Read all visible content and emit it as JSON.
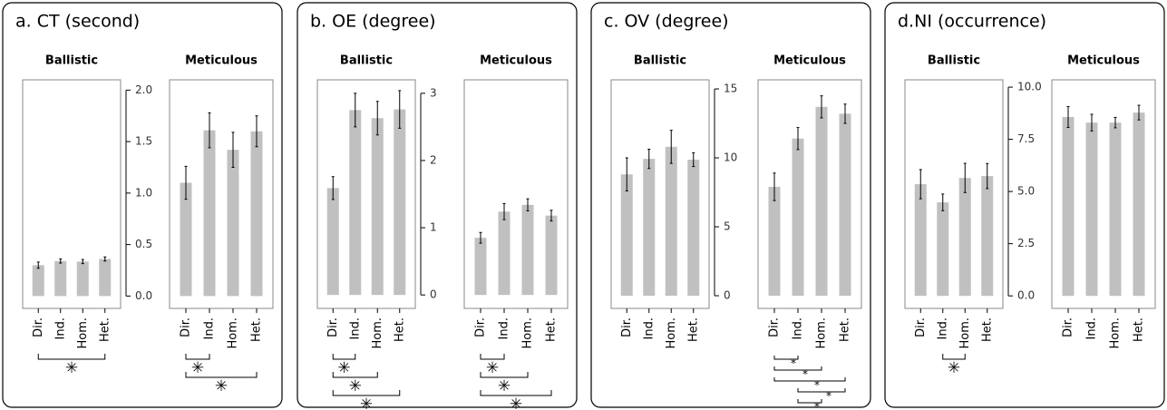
{
  "chart_data": [
    {
      "type": "bar",
      "title": "a. CT (second)",
      "color": "#c0c0c0",
      "ylim": [
        -0.12,
        2.1
      ],
      "yticks": [
        {
          "value": 0,
          "label": "0.0"
        },
        0.5,
        {
          "value": 1,
          "label": "1.0"
        },
        1.5,
        {
          "value": 2,
          "label": "2.0"
        }
      ],
      "subplots": [
        {
          "title": "Ballistic",
          "categories": [
            "Dir.",
            "Ind.",
            "Hom.",
            "Het."
          ],
          "values": [
            0.3,
            0.34,
            0.335,
            0.36
          ],
          "errors": [
            0.03,
            0.02,
            0.02,
            0.02
          ],
          "comparisons": [
            {
              "pair": [
                "Dir.",
                "Het."
              ],
              "label": "✳"
            }
          ]
        },
        {
          "title": "Meticulous",
          "categories": [
            "Dir.",
            "Ind.",
            "Hom.",
            "Het."
          ],
          "values": [
            1.1,
            1.61,
            1.42,
            1.6
          ],
          "errors": [
            0.16,
            0.17,
            0.17,
            0.15
          ],
          "comparisons": [
            {
              "pair": [
                "Dir.",
                "Ind."
              ],
              "label": "✳"
            },
            {
              "pair": [
                "Dir.",
                "Het."
              ],
              "label": "✳"
            }
          ]
        }
      ]
    },
    {
      "type": "bar",
      "title": "b. OE (degree)",
      "color": "#c0c0c0",
      "ylim": [
        -0.2,
        3.2
      ],
      "yticks": [
        0,
        1,
        2,
        3
      ],
      "subplots": [
        {
          "title": "Ballistic",
          "categories": [
            "Dir.",
            "Ind.",
            "Hom.",
            "Het."
          ],
          "values": [
            1.59,
            2.75,
            2.63,
            2.76
          ],
          "errors": [
            0.17,
            0.25,
            0.25,
            0.28
          ],
          "comparisons": [
            {
              "pair": [
                "Dir.",
                "Ind."
              ],
              "label": "✳"
            },
            {
              "pair": [
                "Dir.",
                "Hom."
              ],
              "label": "✳"
            },
            {
              "pair": [
                "Dir.",
                "Het."
              ],
              "label": "✳"
            }
          ]
        },
        {
          "title": "Meticulous",
          "categories": [
            "Dir.",
            "Ind.",
            "Hom.",
            "Het."
          ],
          "values": [
            0.85,
            1.24,
            1.34,
            1.18
          ],
          "errors": [
            0.08,
            0.12,
            0.09,
            0.08
          ],
          "comparisons": [
            {
              "pair": [
                "Dir.",
                "Ind."
              ],
              "label": "✳"
            },
            {
              "pair": [
                "Dir.",
                "Hom."
              ],
              "label": "✳"
            },
            {
              "pair": [
                "Dir.",
                "Het."
              ],
              "label": "✳"
            }
          ]
        }
      ]
    },
    {
      "type": "bar",
      "title": "c. OV (degree)",
      "color": "#c0c0c0",
      "ylim": [
        -0.92,
        15.66
      ],
      "yticks": [
        0,
        5,
        10,
        15
      ],
      "subplots": [
        {
          "title": "Ballistic",
          "categories": [
            "Dir.",
            "Ind.",
            "Hom.",
            "Het."
          ],
          "values": [
            8.8,
            9.93,
            10.8,
            9.87
          ],
          "errors": [
            1.2,
            0.7,
            1.2,
            0.5
          ],
          "comparisons": []
        },
        {
          "title": "Meticulous",
          "categories": [
            "Dir.",
            "Ind.",
            "Hom.",
            "Het."
          ],
          "values": [
            7.9,
            11.4,
            13.7,
            13.2
          ],
          "errors": [
            1.0,
            0.8,
            0.8,
            0.7
          ],
          "comparisons": [
            {
              "pair": [
                "Dir.",
                "Ind."
              ],
              "label": "*"
            },
            {
              "pair": [
                "Dir.",
                "Hom."
              ],
              "label": "*"
            },
            {
              "pair": [
                "Dir.",
                "Het."
              ],
              "label": "*"
            },
            {
              "pair": [
                "Ind.",
                "Het."
              ],
              "label": "*"
            },
            {
              "pair": [
                "Ind.",
                "Hom."
              ],
              "label": "*"
            }
          ]
        }
      ]
    },
    {
      "type": "bar",
      "title": "d.NI (occurrence)",
      "color": "#c0c0c0",
      "ylim": [
        -0.6,
        10.35
      ],
      "yticks": [
        {
          "value": 0,
          "label": "0.0"
        },
        2.5,
        {
          "value": 5,
          "label": "5.0"
        },
        7.5,
        {
          "value": 10,
          "label": "10.0"
        }
      ],
      "subplots": [
        {
          "title": "Ballistic",
          "categories": [
            "Dir.",
            "Ind.",
            "Hom.",
            "Het."
          ],
          "values": [
            5.35,
            4.48,
            5.65,
            5.74
          ],
          "errors": [
            0.7,
            0.4,
            0.7,
            0.6
          ],
          "comparisons": [
            {
              "pair": [
                "Ind.",
                "Hom."
              ],
              "label": "✳"
            }
          ]
        },
        {
          "title": "Meticulous",
          "categories": [
            "Dir.",
            "Ind.",
            "Hom.",
            "Het."
          ],
          "values": [
            8.57,
            8.3,
            8.3,
            8.78
          ],
          "errors": [
            0.5,
            0.4,
            0.25,
            0.35
          ],
          "comparisons": []
        }
      ]
    }
  ]
}
